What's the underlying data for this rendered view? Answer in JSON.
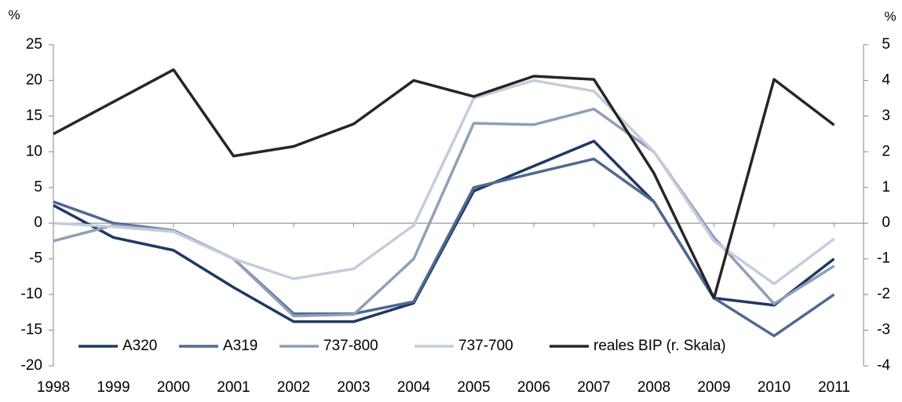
{
  "chart_data": {
    "type": "line",
    "y_unit_label": "%",
    "y2_unit_label": "%",
    "categories": [
      "1998",
      "1999",
      "2000",
      "2001",
      "2002",
      "2003",
      "2004",
      "2005",
      "2006",
      "2007",
      "2008",
      "2009",
      "2010",
      "2011"
    ],
    "series": [
      {
        "name": "A320",
        "color": "#1f3864",
        "values": [
          2.5,
          -2,
          -3.8,
          -9,
          -13.8,
          -13.8,
          -11.2,
          4.5,
          8,
          11.5,
          3,
          -10.5,
          -11.5,
          -5
        ]
      },
      {
        "name": "A319",
        "color": "#51698f",
        "values": [
          3,
          0,
          -1,
          -5,
          -12.7,
          -12.7,
          -11,
          5,
          7,
          9,
          3,
          -10.5,
          -15.8,
          -10
        ]
      },
      {
        "name": "737-800",
        "color": "#8e9fb8",
        "values": [
          -2.5,
          -0.3,
          -1,
          -5,
          -13,
          -12.8,
          -5,
          14,
          13.8,
          16,
          10,
          -2,
          -11.3,
          -6
        ]
      },
      {
        "name": "737-700",
        "color": "#c3cddc",
        "values": [
          0,
          -0.5,
          -1.2,
          -5,
          -7.8,
          -6.4,
          -0.3,
          17.5,
          20,
          18.5,
          10,
          -2.5,
          -8.5,
          -2.2
        ]
      },
      {
        "name": "reales BIP (r. Skala)",
        "color": "#262626",
        "axis": "y2",
        "values": [
          2.5,
          3.4,
          4.3,
          1.88,
          2.15,
          2.78,
          4.0,
          3.55,
          4.12,
          4.03,
          1.4,
          -2.1,
          4.03,
          2.75
        ]
      }
    ],
    "ylim": [
      -20,
      25
    ],
    "yticks": [
      -20,
      -15,
      -10,
      -5,
      0,
      5,
      10,
      15,
      20,
      25
    ],
    "y2lim": [
      -4,
      5
    ],
    "y2ticks": [
      -4,
      -3,
      -2,
      -1,
      0,
      1,
      2,
      3,
      4,
      5
    ],
    "legend": "bottom"
  }
}
